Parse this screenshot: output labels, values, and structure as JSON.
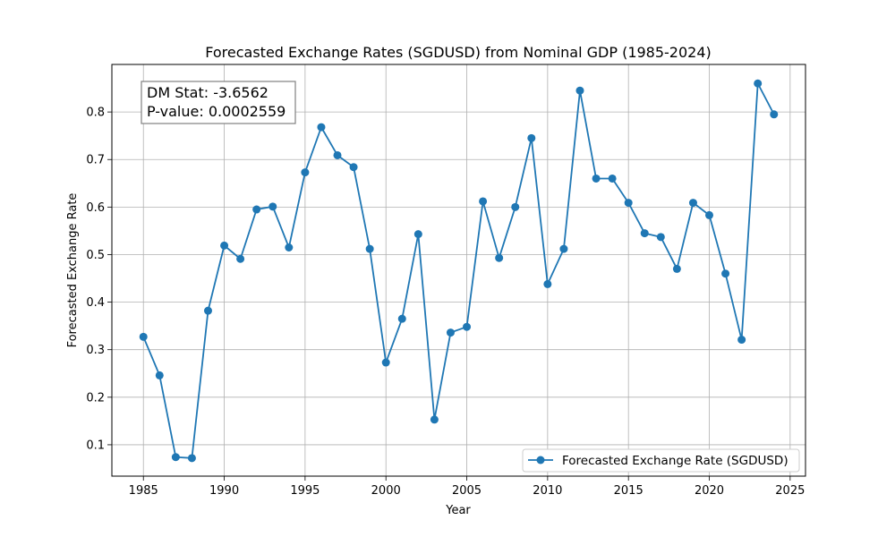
{
  "chart_data": {
    "type": "line",
    "title": "Forecasted Exchange Rates (SGDUSD) from Nominal GDP (1985-2024)",
    "xlabel": "Year",
    "ylabel": "Forecasted Exchange Rate",
    "xlim": [
      1983.05,
      2025.95
    ],
    "ylim": [
      0.034,
      0.9
    ],
    "xticks": [
      1985,
      1990,
      1995,
      2000,
      2005,
      2010,
      2015,
      2020,
      2025
    ],
    "yticks": [
      0.1,
      0.2,
      0.3,
      0.4,
      0.5,
      0.6,
      0.7,
      0.8
    ],
    "grid": true,
    "legend_position": "lower-right",
    "annotation": {
      "line1": "DM Stat: -3.6562",
      "line2": "P-value: 0.0002559"
    },
    "series": [
      {
        "name": "Forecasted Exchange Rate (SGDUSD)",
        "color": "#1f77b4",
        "x": [
          1985,
          1986,
          1987,
          1988,
          1989,
          1990,
          1991,
          1992,
          1993,
          1994,
          1995,
          1996,
          1997,
          1998,
          1999,
          2000,
          2001,
          2002,
          2003,
          2004,
          2005,
          2006,
          2007,
          2008,
          2009,
          2010,
          2011,
          2012,
          2013,
          2014,
          2015,
          2016,
          2017,
          2018,
          2019,
          2020,
          2021,
          2022,
          2023,
          2024
        ],
        "y": [
          0.327,
          0.246,
          0.074,
          0.072,
          0.382,
          0.519,
          0.491,
          0.595,
          0.601,
          0.515,
          0.673,
          0.768,
          0.709,
          0.684,
          0.512,
          0.273,
          0.365,
          0.543,
          0.153,
          0.336,
          0.348,
          0.612,
          0.493,
          0.6,
          0.745,
          0.438,
          0.512,
          0.845,
          0.66,
          0.66,
          0.609,
          0.545,
          0.537,
          0.47,
          0.609,
          0.583,
          0.46,
          0.321,
          0.86,
          0.795
        ]
      }
    ]
  }
}
